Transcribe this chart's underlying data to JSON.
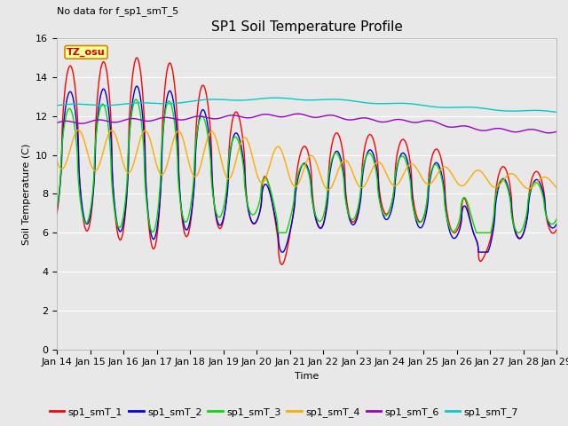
{
  "title": "SP1 Soil Temperature Profile",
  "xlabel": "Time",
  "ylabel": "Soil Temperature (C)",
  "no_data_text": "No data for f_sp1_smT_5",
  "tz_label": "TZ_osu",
  "ylim": [
    0,
    16
  ],
  "yticks": [
    0,
    2,
    4,
    6,
    8,
    10,
    12,
    14,
    16
  ],
  "xtick_labels": [
    "Jan 14",
    "Jan 15",
    "Jan 16",
    "Jan 17",
    "Jan 18",
    "Jan 19",
    "Jan 20",
    "Jan 21",
    "Jan 22",
    "Jan 23",
    "Jan 24",
    "Jan 25",
    "Jan 26",
    "Jan 27",
    "Jan 28",
    "Jan 29"
  ],
  "legend_labels": [
    "sp1_smT_1",
    "sp1_smT_2",
    "sp1_smT_3",
    "sp1_smT_4",
    "sp1_smT_6",
    "sp1_smT_7"
  ],
  "legend_colors": [
    "#ff0000",
    "#0000dd",
    "#00dd00",
    "#ffaa00",
    "#9900cc",
    "#00cccc"
  ],
  "bg_color": "#e8e8e8",
  "plot_bg_color": "#e8e8e8",
  "grid_color": "#ffffff",
  "title_fontsize": 11,
  "axis_label_fontsize": 8,
  "tick_fontsize": 8,
  "legend_fontsize": 8
}
